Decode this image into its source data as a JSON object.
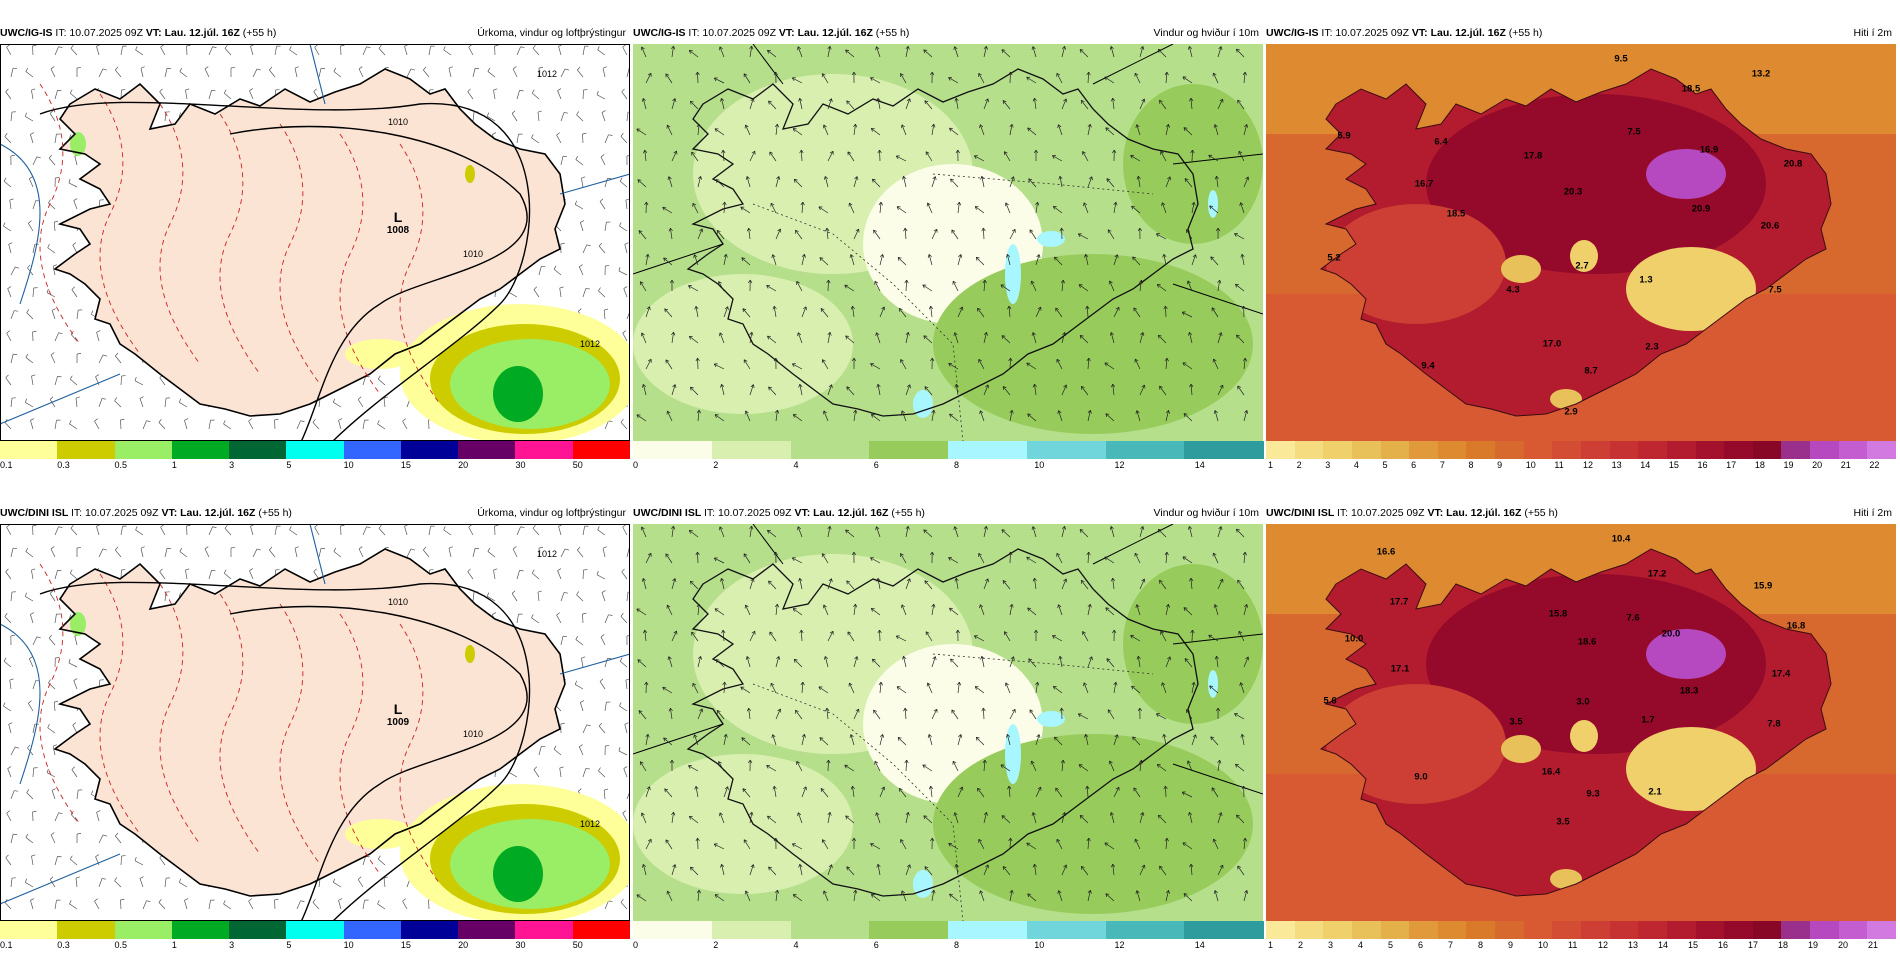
{
  "panels": [
    {
      "id": "p1",
      "model": "UWC/IG-IS",
      "it": "IT: 10.07.2025 09Z",
      "vt_label": "VT:",
      "vt": "Lau. 12.júl. 16Z",
      "lead": "(+55 h)",
      "title": "Úrkoma, vindur og loftþrýstingur",
      "kind": "precip",
      "low": {
        "letter": "L",
        "value": "1008"
      },
      "isobars": [
        "1010",
        "1010",
        "1012",
        "1012"
      ]
    },
    {
      "id": "p2",
      "model": "UWC/IG-IS",
      "it": "IT: 10.07.2025 09Z",
      "vt_label": "VT:",
      "vt": "Lau. 12.júl. 16Z",
      "lead": "(+55 h)",
      "title": "Vindur og hviður í 10m",
      "kind": "wind"
    },
    {
      "id": "p3",
      "model": "UWC/IG-IS",
      "it": "IT: 10.07.2025 09Z",
      "vt_label": "VT:",
      "vt": "Lau. 12.júl. 16Z",
      "lead": "(+55 h)",
      "title": "Hiti í 2m",
      "kind": "temp",
      "temps": [
        "9.5",
        "18.5",
        "13.2",
        "5.9",
        "6.4",
        "17.8",
        "7.5",
        "16.9",
        "20.8",
        "16.7",
        "20.3",
        "20.9",
        "18.5",
        "20.6",
        "5.2",
        "2.7",
        "4.3",
        "1.3",
        "7.5",
        "17.0",
        "2.3",
        "9.4",
        "8.7",
        "2.9"
      ]
    },
    {
      "id": "p4",
      "model": "UWC/DINI ISL",
      "it": "IT: 10.07.2025 09Z",
      "vt_label": "VT:",
      "vt": "Lau. 12.júl. 16Z",
      "lead": "(+55 h)",
      "title": "Úrkoma, vindur og loftþrýstingur",
      "kind": "precip",
      "low": {
        "letter": "L",
        "value": "1009"
      },
      "isobars": [
        "1010",
        "1010",
        "1012",
        "1012"
      ]
    },
    {
      "id": "p5",
      "model": "UWC/DINI ISL",
      "it": "IT: 10.07.2025 09Z",
      "vt_label": "VT:",
      "vt": "Lau. 12.júl. 16Z",
      "lead": "(+55 h)",
      "title": "Vindur og hviður í 10m",
      "kind": "wind"
    },
    {
      "id": "p6",
      "model": "UWC/DINI ISL",
      "it": "IT: 10.07.2025 09Z",
      "vt_label": "VT:",
      "vt": "Lau. 12.júl. 16Z",
      "lead": "(+55 h)",
      "title": "Hiti í 2m",
      "kind": "temp",
      "temps": [
        "10.4",
        "16.6",
        "17.2",
        "15.9",
        "17.7",
        "15.8",
        "7.6",
        "10.0",
        "18.6",
        "20.0",
        "16.8",
        "17.1",
        "18.3",
        "17.4",
        "5.6",
        "3.0",
        "3.5",
        "1.7",
        "7.8",
        "16.4",
        "2.1",
        "9.0",
        "9.3",
        "3.5"
      ]
    }
  ],
  "colorbars": {
    "precip": {
      "ticks": [
        "0.1",
        "0.3",
        "0.5",
        "1",
        "3",
        "5",
        "10",
        "15",
        "20",
        "30",
        "50"
      ],
      "colors": [
        "#ffff99",
        "#cccc00",
        "#99ee66",
        "#00aa22",
        "#006633",
        "#00ffee",
        "#3366ff",
        "#000099",
        "#660066",
        "#ff1493",
        "#ff0000"
      ]
    },
    "wind": {
      "ticks": [
        "0",
        "2",
        "4",
        "6",
        "8",
        "10",
        "12",
        "14"
      ],
      "colors": [
        "#fbfde8",
        "#d9efb0",
        "#b6df8c",
        "#97cc5c",
        "#a8f6ff",
        "#70d6dc",
        "#48b8b8",
        "#2e9c9c"
      ]
    },
    "temp": {
      "ticks": [
        "1",
        "2",
        "3",
        "4",
        "5",
        "6",
        "7",
        "8",
        "9",
        "10",
        "11",
        "12",
        "13",
        "14",
        "15",
        "16",
        "17",
        "18",
        "19",
        "20",
        "21",
        "22"
      ],
      "colors": [
        "#fbe99a",
        "#f5dc80",
        "#efd06a",
        "#e9c15a",
        "#e4b04a",
        "#e09a3c",
        "#dd8a30",
        "#d9792a",
        "#d8692e",
        "#d85a32",
        "#d34c34",
        "#cd3f34",
        "#c63232",
        "#be2630",
        "#b31b2e",
        "#a4112c",
        "#950a2a",
        "#880626",
        "#9b2f8c",
        "#b648c0",
        "#c45ed0",
        "#d27ae0"
      ]
    }
  },
  "colorbar_ticks_dini": {
    "temp": [
      "1",
      "2",
      "3",
      "4",
      "5",
      "6",
      "7",
      "8",
      "9",
      "10",
      "11",
      "12",
      "13",
      "14",
      "15",
      "16",
      "17",
      "18",
      "19",
      "20",
      "21"
    ]
  }
}
